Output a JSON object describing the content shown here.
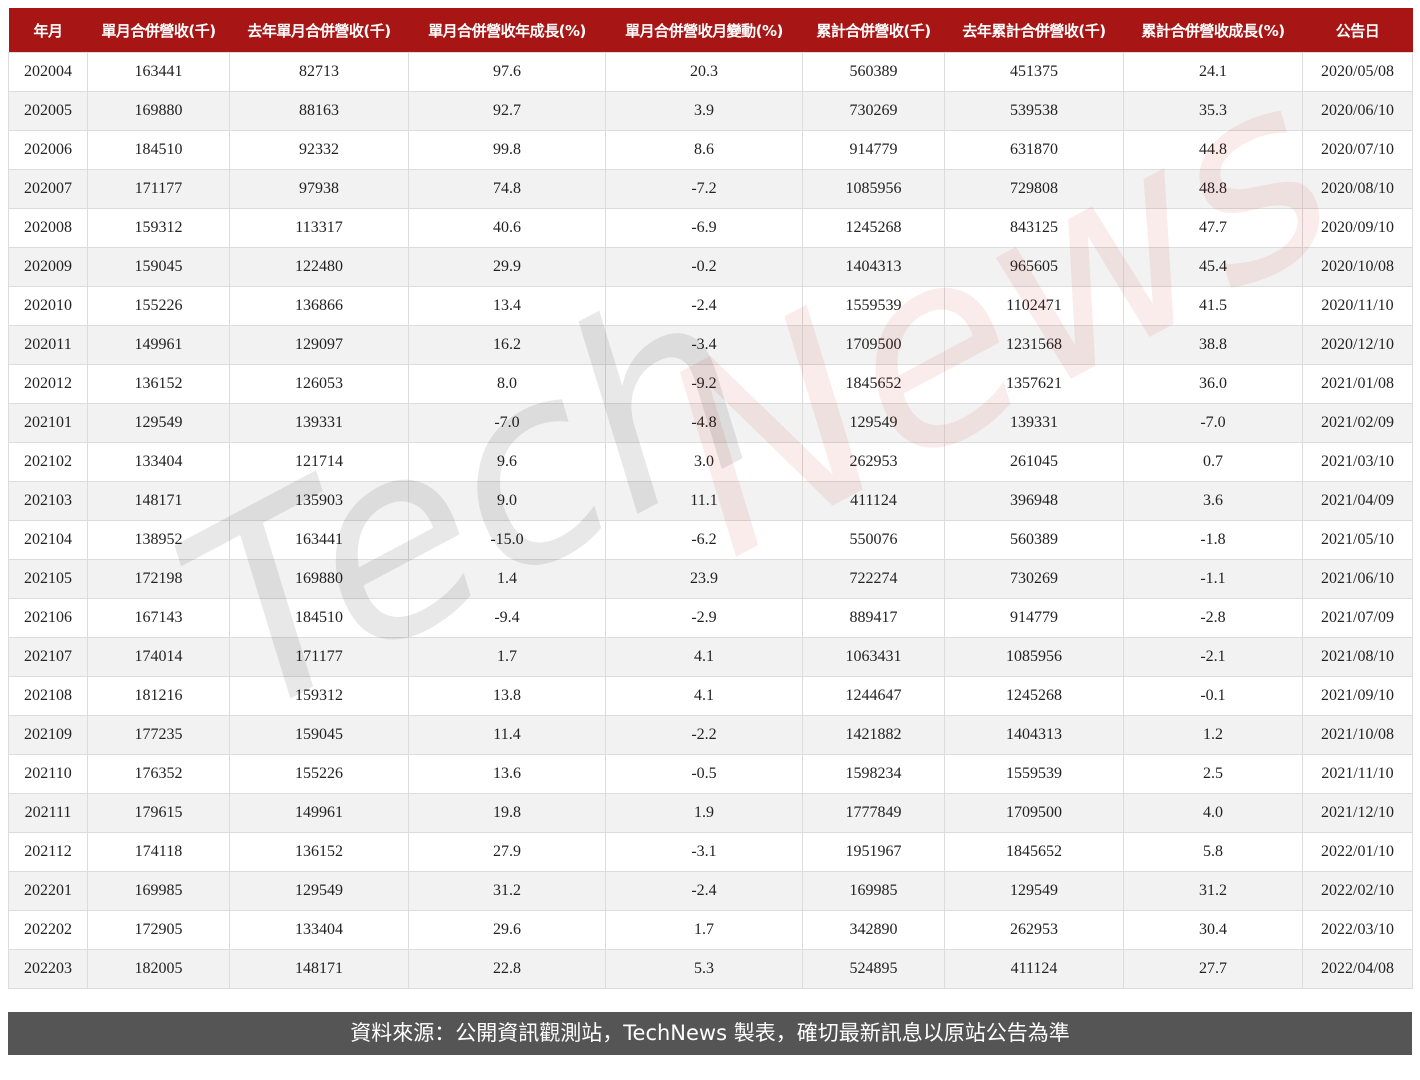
{
  "table": {
    "headers": [
      "年月",
      "單月合併營收(千)",
      "去年單月合併營收(千)",
      "單月合併營收年成長(%)",
      "單月合併營收月變動(%)",
      "累計合併營收(千)",
      "去年累計合併營收(千)",
      "累計合併營收成長(%)",
      "公告日"
    ],
    "rows": [
      [
        "202004",
        "163441",
        "82713",
        "97.6",
        "20.3",
        "560389",
        "451375",
        "24.1",
        "2020/05/08"
      ],
      [
        "202005",
        "169880",
        "88163",
        "92.7",
        "3.9",
        "730269",
        "539538",
        "35.3",
        "2020/06/10"
      ],
      [
        "202006",
        "184510",
        "92332",
        "99.8",
        "8.6",
        "914779",
        "631870",
        "44.8",
        "2020/07/10"
      ],
      [
        "202007",
        "171177",
        "97938",
        "74.8",
        "-7.2",
        "1085956",
        "729808",
        "48.8",
        "2020/08/10"
      ],
      [
        "202008",
        "159312",
        "113317",
        "40.6",
        "-6.9",
        "1245268",
        "843125",
        "47.7",
        "2020/09/10"
      ],
      [
        "202009",
        "159045",
        "122480",
        "29.9",
        "-0.2",
        "1404313",
        "965605",
        "45.4",
        "2020/10/08"
      ],
      [
        "202010",
        "155226",
        "136866",
        "13.4",
        "-2.4",
        "1559539",
        "1102471",
        "41.5",
        "2020/11/10"
      ],
      [
        "202011",
        "149961",
        "129097",
        "16.2",
        "-3.4",
        "1709500",
        "1231568",
        "38.8",
        "2020/12/10"
      ],
      [
        "202012",
        "136152",
        "126053",
        "8.0",
        "-9.2",
        "1845652",
        "1357621",
        "36.0",
        "2021/01/08"
      ],
      [
        "202101",
        "129549",
        "139331",
        "-7.0",
        "-4.8",
        "129549",
        "139331",
        "-7.0",
        "2021/02/09"
      ],
      [
        "202102",
        "133404",
        "121714",
        "9.6",
        "3.0",
        "262953",
        "261045",
        "0.7",
        "2021/03/10"
      ],
      [
        "202103",
        "148171",
        "135903",
        "9.0",
        "11.1",
        "411124",
        "396948",
        "3.6",
        "2021/04/09"
      ],
      [
        "202104",
        "138952",
        "163441",
        "-15.0",
        "-6.2",
        "550076",
        "560389",
        "-1.8",
        "2021/05/10"
      ],
      [
        "202105",
        "172198",
        "169880",
        "1.4",
        "23.9",
        "722274",
        "730269",
        "-1.1",
        "2021/06/10"
      ],
      [
        "202106",
        "167143",
        "184510",
        "-9.4",
        "-2.9",
        "889417",
        "914779",
        "-2.8",
        "2021/07/09"
      ],
      [
        "202107",
        "174014",
        "171177",
        "1.7",
        "4.1",
        "1063431",
        "1085956",
        "-2.1",
        "2021/08/10"
      ],
      [
        "202108",
        "181216",
        "159312",
        "13.8",
        "4.1",
        "1244647",
        "1245268",
        "-0.1",
        "2021/09/10"
      ],
      [
        "202109",
        "177235",
        "159045",
        "11.4",
        "-2.2",
        "1421882",
        "1404313",
        "1.2",
        "2021/10/08"
      ],
      [
        "202110",
        "176352",
        "155226",
        "13.6",
        "-0.5",
        "1598234",
        "1559539",
        "2.5",
        "2021/11/10"
      ],
      [
        "202111",
        "179615",
        "149961",
        "19.8",
        "1.9",
        "1777849",
        "1709500",
        "4.0",
        "2021/12/10"
      ],
      [
        "202112",
        "174118",
        "136152",
        "27.9",
        "-3.1",
        "1951967",
        "1845652",
        "5.8",
        "2022/01/10"
      ],
      [
        "202201",
        "169985",
        "129549",
        "31.2",
        "-2.4",
        "169985",
        "129549",
        "31.2",
        "2022/02/10"
      ],
      [
        "202202",
        "172905",
        "133404",
        "29.6",
        "1.7",
        "342890",
        "262953",
        "30.4",
        "2022/03/10"
      ],
      [
        "202203",
        "182005",
        "148171",
        "22.8",
        "5.3",
        "524895",
        "411124",
        "27.7",
        "2022/04/08"
      ]
    ]
  },
  "footer": {
    "source": "資料來源：公開資訊觀測站，TechNews 製表，確切最新訊息以原站公告為準"
  },
  "watermark": {
    "text": "TechNews"
  },
  "colors": {
    "header_bg": "#a81515",
    "footer_bg": "#555555"
  }
}
